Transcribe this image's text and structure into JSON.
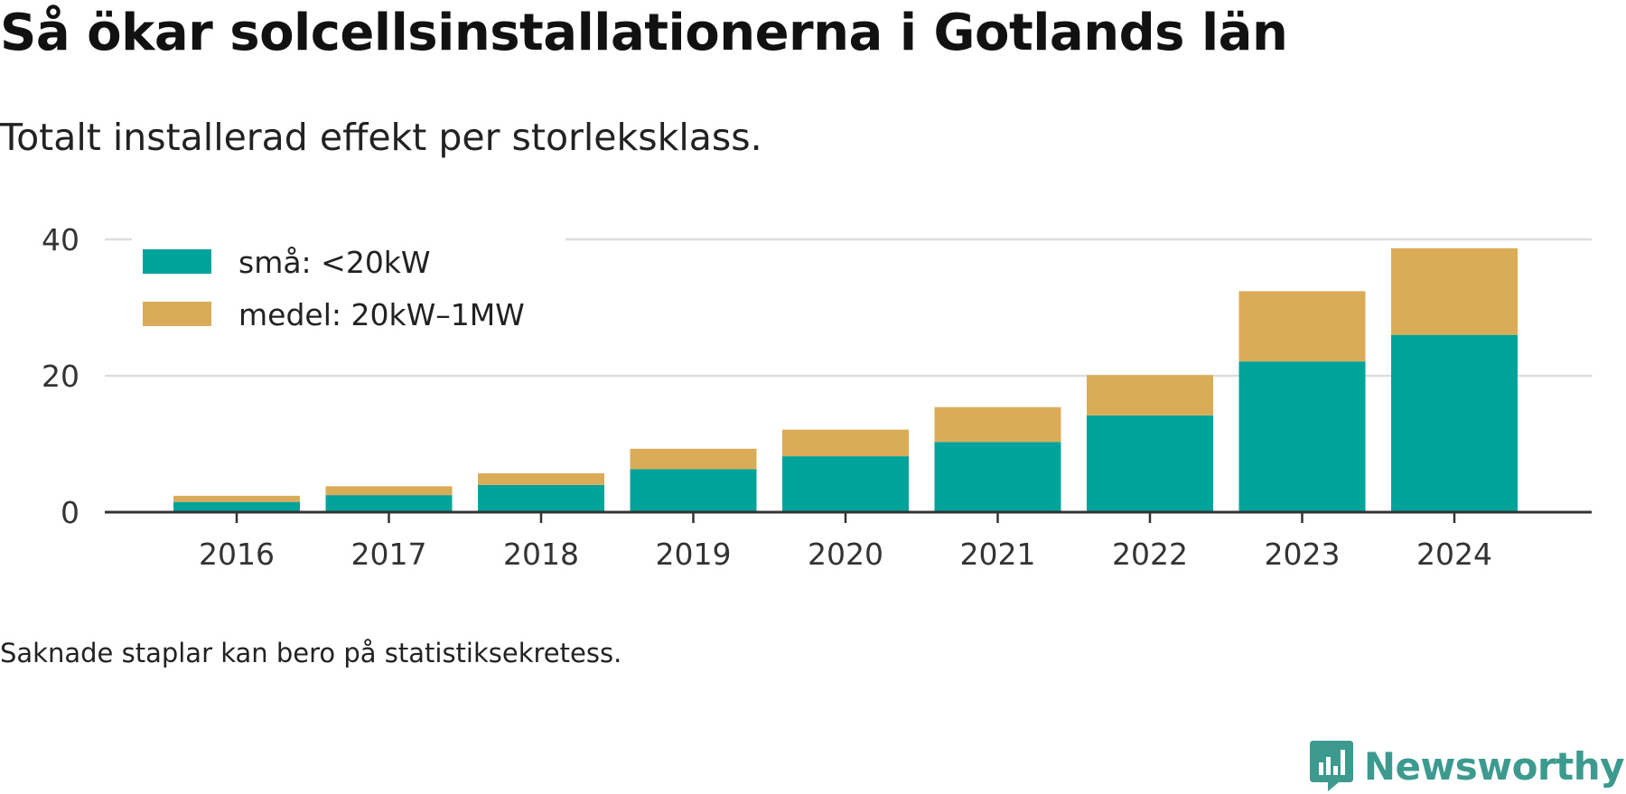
{
  "title": "Så ökar solcellsinstallationerna i Gotlands län",
  "subtitle": "Totalt installerad effekt per storleksklass.",
  "note": "Saknade staplar kan bero på statistiksekretess.",
  "brand": {
    "name": "Newsworthy",
    "icon": "newsworthy-logo-icon",
    "color": "#3c9a8f"
  },
  "chart_data": {
    "type": "bar",
    "stacked": true,
    "categories": [
      "2016",
      "2017",
      "2018",
      "2019",
      "2020",
      "2021",
      "2022",
      "2023",
      "2024"
    ],
    "series": [
      {
        "name": "små: <20kW",
        "color": "#00a39a",
        "values": [
          1.5,
          2.5,
          4.0,
          6.3,
          8.2,
          10.3,
          14.2,
          22.1,
          26.0
        ]
      },
      {
        "name": "medel: 20kW–1MW",
        "color": "#dbac58",
        "values": [
          0.9,
          1.3,
          1.7,
          3.0,
          3.9,
          5.1,
          5.9,
          10.3,
          12.7
        ]
      }
    ],
    "yticks": [
      "0",
      "20",
      "40"
    ],
    "ylim": [
      0,
      40
    ],
    "grid": true,
    "legend_position": "top-left",
    "xlabel": "",
    "ylabel": ""
  }
}
